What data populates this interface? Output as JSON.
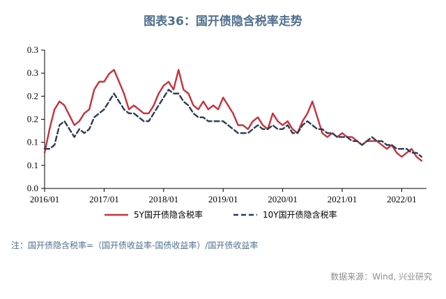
{
  "title": "图表36：国开债隐含税率走势",
  "note": "注：国开债隐含税率=（国开债收益率-国债收益率）/国开债收益率",
  "source": "数据来源：Wind, 兴业研究",
  "chart_data": {
    "type": "line",
    "title": "图表36：国开债隐含税率走势",
    "xlabel": "",
    "ylabel": "",
    "x_ticks": [
      "2016/01",
      "2017/01",
      "2018/01",
      "2019/01",
      "2020/01",
      "2021/01",
      "2022/01"
    ],
    "y_ticks": [
      "0.0",
      "0.1",
      "0.1",
      "0.2",
      "0.2",
      "0.3",
      "0.3"
    ],
    "ylim": [
      0,
      0.35
    ],
    "legend_position": "bottom",
    "grid": false,
    "series": [
      {
        "name": "5Y国开债隐含税率",
        "color": "#c8303a",
        "style": "solid",
        "points": [
          [
            "2016/01",
            0.09
          ],
          [
            "2016/02",
            0.15
          ],
          [
            "2016/03",
            0.2
          ],
          [
            "2016/04",
            0.22
          ],
          [
            "2016/05",
            0.21
          ],
          [
            "2016/06",
            0.185
          ],
          [
            "2016/07",
            0.16
          ],
          [
            "2016/08",
            0.17
          ],
          [
            "2016/09",
            0.19
          ],
          [
            "2016/10",
            0.2
          ],
          [
            "2016/11",
            0.25
          ],
          [
            "2016/12",
            0.27
          ],
          [
            "2017/01",
            0.27
          ],
          [
            "2017/02",
            0.29
          ],
          [
            "2017/03",
            0.3
          ],
          [
            "2017/04",
            0.27
          ],
          [
            "2017/05",
            0.24
          ],
          [
            "2017/06",
            0.2
          ],
          [
            "2017/07",
            0.21
          ],
          [
            "2017/08",
            0.2
          ],
          [
            "2017/09",
            0.19
          ],
          [
            "2017/10",
            0.19
          ],
          [
            "2017/11",
            0.21
          ],
          [
            "2017/12",
            0.24
          ],
          [
            "2018/01",
            0.26
          ],
          [
            "2018/02",
            0.27
          ],
          [
            "2018/03",
            0.25
          ],
          [
            "2018/04",
            0.3
          ],
          [
            "2018/05",
            0.25
          ],
          [
            "2018/06",
            0.24
          ],
          [
            "2018/07",
            0.21
          ],
          [
            "2018/08",
            0.2
          ],
          [
            "2018/09",
            0.22
          ],
          [
            "2018/10",
            0.2
          ],
          [
            "2018/11",
            0.21
          ],
          [
            "2018/12",
            0.2
          ],
          [
            "2019/01",
            0.23
          ],
          [
            "2019/02",
            0.21
          ],
          [
            "2019/03",
            0.19
          ],
          [
            "2019/04",
            0.16
          ],
          [
            "2019/05",
            0.16
          ],
          [
            "2019/06",
            0.15
          ],
          [
            "2019/07",
            0.17
          ],
          [
            "2019/08",
            0.18
          ],
          [
            "2019/09",
            0.16
          ],
          [
            "2019/10",
            0.15
          ],
          [
            "2019/11",
            0.19
          ],
          [
            "2019/12",
            0.17
          ],
          [
            "2020/01",
            0.16
          ],
          [
            "2020/02",
            0.17
          ],
          [
            "2020/03",
            0.15
          ],
          [
            "2020/04",
            0.14
          ],
          [
            "2020/05",
            0.17
          ],
          [
            "2020/06",
            0.19
          ],
          [
            "2020/07",
            0.22
          ],
          [
            "2020/08",
            0.18
          ],
          [
            "2020/09",
            0.14
          ],
          [
            "2020/10",
            0.13
          ],
          [
            "2020/11",
            0.14
          ],
          [
            "2020/12",
            0.13
          ],
          [
            "2021/01",
            0.14
          ],
          [
            "2021/02",
            0.13
          ],
          [
            "2021/03",
            0.13
          ],
          [
            "2021/04",
            0.12
          ],
          [
            "2021/05",
            0.11
          ],
          [
            "2021/06",
            0.12
          ],
          [
            "2021/07",
            0.12
          ],
          [
            "2021/08",
            0.12
          ],
          [
            "2021/09",
            0.11
          ],
          [
            "2021/10",
            0.1
          ],
          [
            "2021/11",
            0.11
          ],
          [
            "2021/12",
            0.09
          ],
          [
            "2022/01",
            0.08
          ],
          [
            "2022/02",
            0.09
          ],
          [
            "2022/03",
            0.1
          ],
          [
            "2022/04",
            0.08
          ],
          [
            "2022/05",
            0.07
          ]
        ]
      },
      {
        "name": "10Y国开债隐含税率",
        "color": "#2b3a55",
        "style": "dashed",
        "points": [
          [
            "2016/01",
            0.1
          ],
          [
            "2016/02",
            0.1
          ],
          [
            "2016/03",
            0.11
          ],
          [
            "2016/04",
            0.16
          ],
          [
            "2016/05",
            0.17
          ],
          [
            "2016/06",
            0.15
          ],
          [
            "2016/07",
            0.13
          ],
          [
            "2016/08",
            0.15
          ],
          [
            "2016/09",
            0.14
          ],
          [
            "2016/10",
            0.15
          ],
          [
            "2016/11",
            0.18
          ],
          [
            "2016/12",
            0.19
          ],
          [
            "2017/01",
            0.2
          ],
          [
            "2017/02",
            0.22
          ],
          [
            "2017/03",
            0.24
          ],
          [
            "2017/04",
            0.22
          ],
          [
            "2017/05",
            0.2
          ],
          [
            "2017/06",
            0.19
          ],
          [
            "2017/07",
            0.19
          ],
          [
            "2017/08",
            0.18
          ],
          [
            "2017/09",
            0.17
          ],
          [
            "2017/10",
            0.17
          ],
          [
            "2017/11",
            0.19
          ],
          [
            "2017/12",
            0.21
          ],
          [
            "2018/01",
            0.23
          ],
          [
            "2018/02",
            0.25
          ],
          [
            "2018/03",
            0.24
          ],
          [
            "2018/04",
            0.24
          ],
          [
            "2018/05",
            0.22
          ],
          [
            "2018/06",
            0.21
          ],
          [
            "2018/07",
            0.19
          ],
          [
            "2018/08",
            0.18
          ],
          [
            "2018/09",
            0.18
          ],
          [
            "2018/10",
            0.17
          ],
          [
            "2018/11",
            0.17
          ],
          [
            "2018/12",
            0.17
          ],
          [
            "2019/01",
            0.17
          ],
          [
            "2019/02",
            0.16
          ],
          [
            "2019/03",
            0.15
          ],
          [
            "2019/04",
            0.14
          ],
          [
            "2019/05",
            0.14
          ],
          [
            "2019/06",
            0.14
          ],
          [
            "2019/07",
            0.15
          ],
          [
            "2019/08",
            0.16
          ],
          [
            "2019/09",
            0.15
          ],
          [
            "2019/10",
            0.15
          ],
          [
            "2019/11",
            0.16
          ],
          [
            "2019/12",
            0.15
          ],
          [
            "2020/01",
            0.15
          ],
          [
            "2020/02",
            0.16
          ],
          [
            "2020/03",
            0.14
          ],
          [
            "2020/04",
            0.14
          ],
          [
            "2020/05",
            0.16
          ],
          [
            "2020/06",
            0.17
          ],
          [
            "2020/07",
            0.16
          ],
          [
            "2020/08",
            0.15
          ],
          [
            "2020/09",
            0.15
          ],
          [
            "2020/10",
            0.14
          ],
          [
            "2020/11",
            0.14
          ],
          [
            "2020/12",
            0.13
          ],
          [
            "2021/01",
            0.13
          ],
          [
            "2021/02",
            0.13
          ],
          [
            "2021/03",
            0.12
          ],
          [
            "2021/04",
            0.12
          ],
          [
            "2021/05",
            0.11
          ],
          [
            "2021/06",
            0.12
          ],
          [
            "2021/07",
            0.13
          ],
          [
            "2021/08",
            0.12
          ],
          [
            "2021/09",
            0.12
          ],
          [
            "2021/10",
            0.11
          ],
          [
            "2021/11",
            0.11
          ],
          [
            "2021/12",
            0.1
          ],
          [
            "2022/01",
            0.1
          ],
          [
            "2022/02",
            0.1
          ],
          [
            "2022/03",
            0.09
          ],
          [
            "2022/04",
            0.09
          ],
          [
            "2022/05",
            0.08
          ]
        ]
      }
    ]
  }
}
